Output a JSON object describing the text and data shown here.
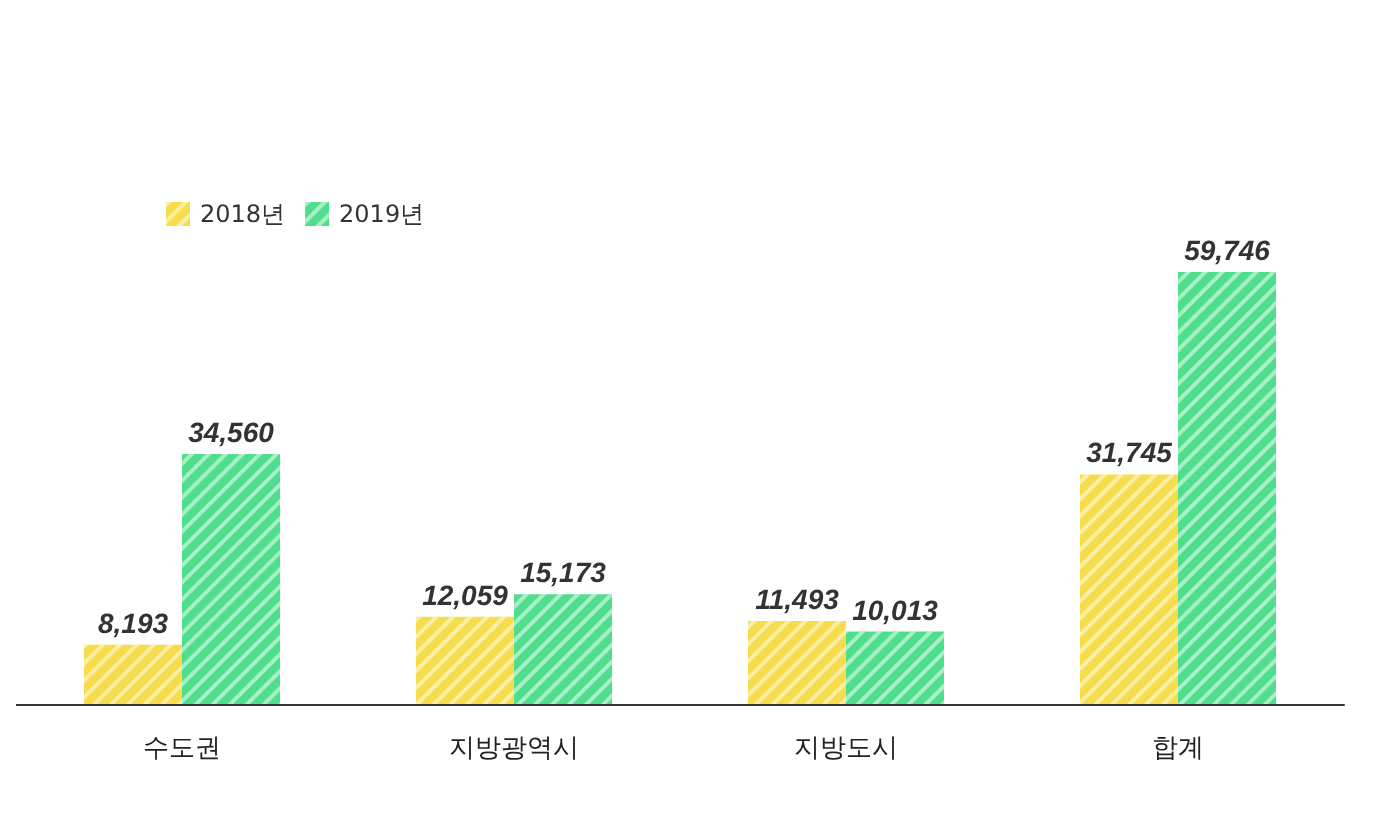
{
  "chart_data": {
    "type": "bar",
    "categories": [
      "수도권",
      "지방광역시",
      "지방도시",
      "합계"
    ],
    "series": [
      {
        "name": "2018년",
        "color": "#f7dc4b",
        "values": [
          8193,
          12059,
          11493,
          31745
        ],
        "value_labels": [
          "8,193",
          "12,059",
          "11,493",
          "31,745"
        ]
      },
      {
        "name": "2019년",
        "color": "#4fdf8c",
        "values": [
          34560,
          15173,
          10013,
          59746
        ],
        "value_labels": [
          "34,560",
          "15,173",
          "10,013",
          "59,746"
        ]
      }
    ],
    "legend": "top left",
    "grid": false,
    "tick_labels": "x"
  }
}
